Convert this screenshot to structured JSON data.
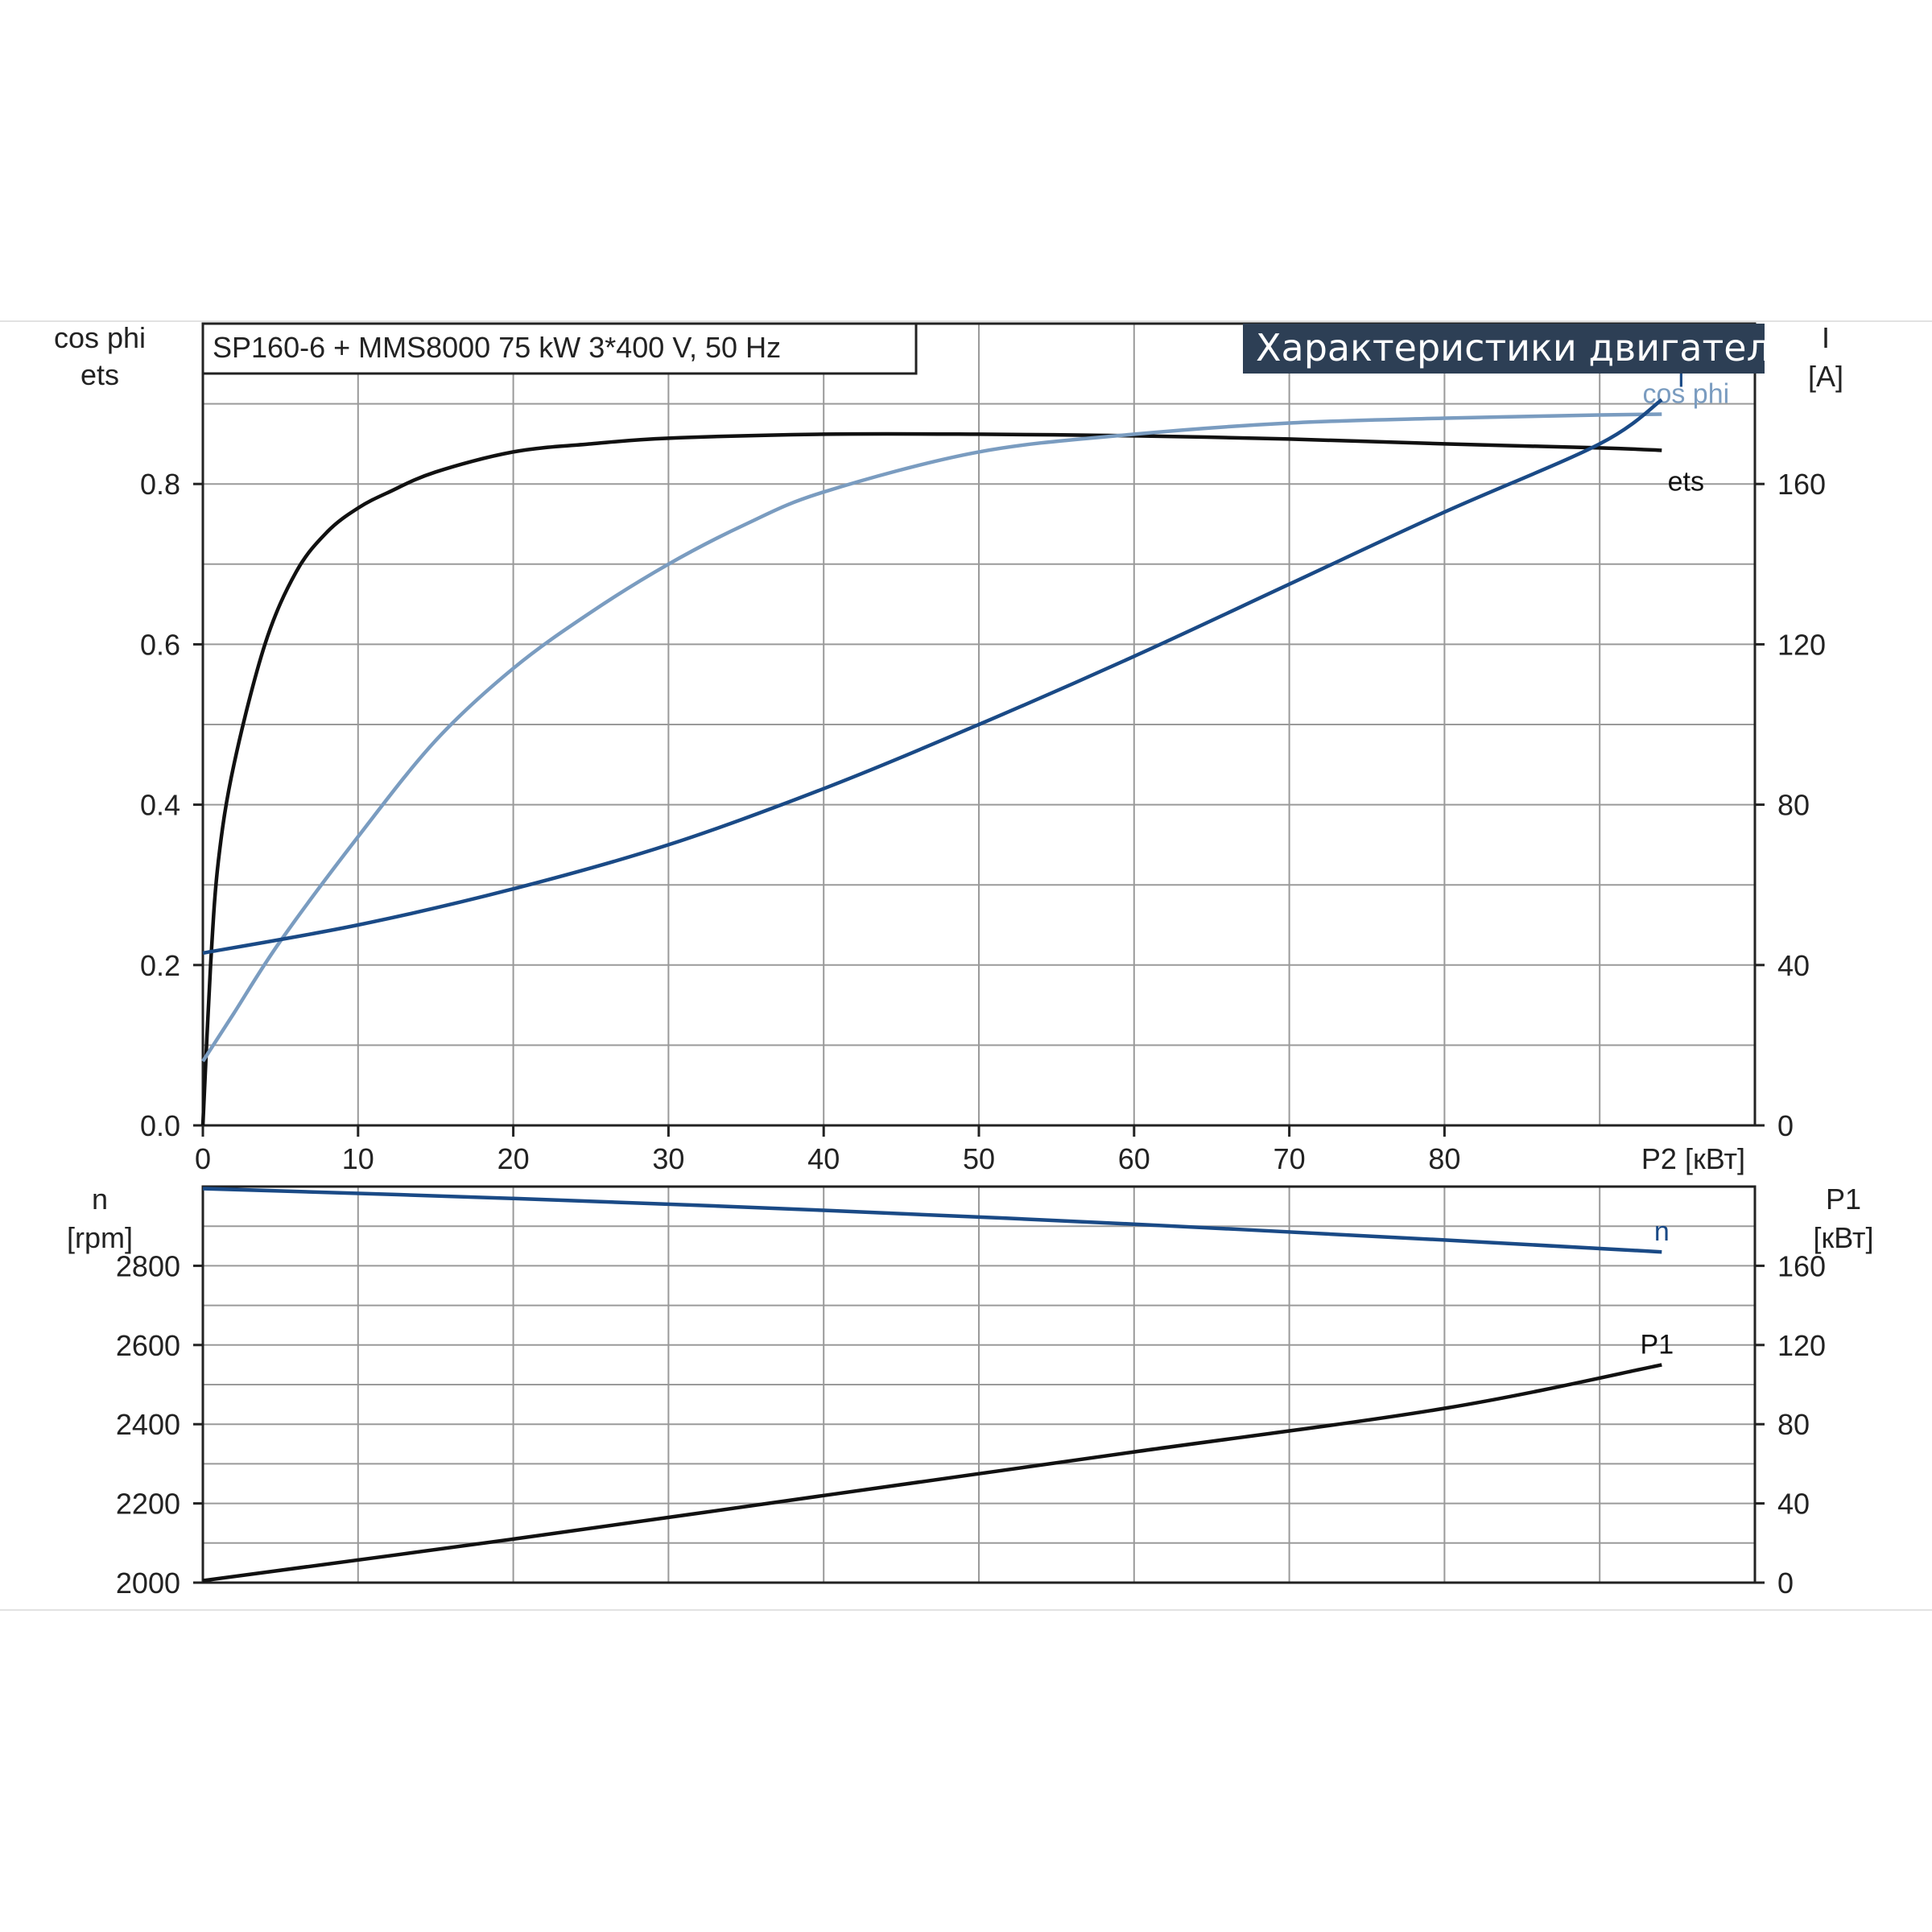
{
  "header": {
    "subtitle": "SP160-6 + MMS8000   75 kW   3*400 V, 50 Hz",
    "banner": "Характеристики двигателя"
  },
  "colors": {
    "ets": "#111111",
    "cos_phi": "#7a9cc0",
    "I": "#1a4a86",
    "n": "#1a4a86",
    "P1": "#111111",
    "banner_bg": "#2d3f55"
  },
  "chart_data": [
    {
      "type": "line",
      "title": "Характеристики двигателя",
      "xlabel": "P2 [кВт]",
      "xlim": [
        0,
        100
      ],
      "x_ticks": [
        "0",
        "10",
        "20",
        "30",
        "40",
        "50",
        "60",
        "70",
        "80"
      ],
      "y_left": {
        "label_line1": "cos phi",
        "label_line2": "ets",
        "lim": [
          0,
          1.0
        ],
        "ticks": [
          "0.0",
          "0.2",
          "0.4",
          "0.6",
          "0.8"
        ]
      },
      "y_right": {
        "label_line1": "I",
        "label_line2": "[A]",
        "lim": [
          0,
          200
        ],
        "ticks": [
          "0",
          "40",
          "80",
          "120",
          "160"
        ]
      },
      "grid": true,
      "series": [
        {
          "name": "ets",
          "axis": "left",
          "x": [
            0,
            0.5,
            1,
            2,
            4,
            6,
            8,
            10,
            12,
            15,
            20,
            25,
            30,
            40,
            50,
            60,
            70,
            80,
            90,
            94
          ],
          "y": [
            0.0,
            0.2,
            0.33,
            0.45,
            0.6,
            0.69,
            0.74,
            0.77,
            0.79,
            0.815,
            0.84,
            0.85,
            0.857,
            0.862,
            0.862,
            0.86,
            0.856,
            0.85,
            0.845,
            0.842
          ]
        },
        {
          "name": "cos phi",
          "axis": "left",
          "x": [
            0,
            2,
            5,
            10,
            15,
            20,
            25,
            30,
            35,
            40,
            50,
            60,
            70,
            80,
            90,
            94
          ],
          "y": [
            0.08,
            0.14,
            0.23,
            0.36,
            0.48,
            0.57,
            0.64,
            0.7,
            0.75,
            0.79,
            0.84,
            0.862,
            0.876,
            0.882,
            0.886,
            0.887
          ]
        },
        {
          "name": "I",
          "axis": "right",
          "x": [
            0,
            10,
            20,
            30,
            40,
            50,
            60,
            70,
            80,
            90,
            94
          ],
          "y": [
            43,
            50,
            59,
            70,
            84,
            100,
            117,
            135,
            153,
            170,
            181
          ]
        }
      ]
    },
    {
      "type": "line",
      "xlabel": "",
      "xlim": [
        0,
        100
      ],
      "y_left": {
        "label_line1": "n",
        "label_line2": "[rpm]",
        "lim": [
          2000,
          3000
        ],
        "ticks": [
          "2000",
          "2200",
          "2400",
          "2600",
          "2800"
        ]
      },
      "y_right": {
        "label_line1": "P1",
        "label_line2": "[кВт]",
        "lim": [
          0,
          200
        ],
        "ticks": [
          "0",
          "40",
          "80",
          "120",
          "160"
        ]
      },
      "grid": true,
      "series": [
        {
          "name": "n",
          "axis": "left",
          "x": [
            0,
            20,
            40,
            60,
            80,
            94
          ],
          "y": [
            2995,
            2970,
            2940,
            2905,
            2865,
            2835
          ]
        },
        {
          "name": "P1",
          "axis": "right",
          "x": [
            0,
            20,
            40,
            60,
            80,
            94
          ],
          "y": [
            1,
            22,
            44,
            66,
            88,
            110
          ]
        }
      ]
    }
  ]
}
